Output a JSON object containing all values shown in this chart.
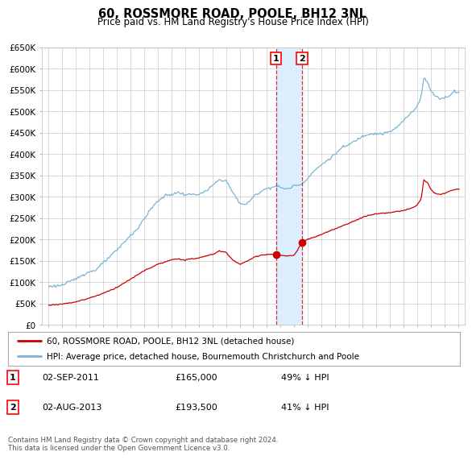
{
  "title": "60, ROSSMORE ROAD, POOLE, BH12 3NL",
  "subtitle": "Price paid vs. HM Land Registry's House Price Index (HPI)",
  "legend_line1": "60, ROSSMORE ROAD, POOLE, BH12 3NL (detached house)",
  "legend_line2": "HPI: Average price, detached house, Bournemouth Christchurch and Poole",
  "footnote": "Contains HM Land Registry data © Crown copyright and database right 2024.\nThis data is licensed under the Open Government Licence v3.0.",
  "transaction1_date": "02-SEP-2011",
  "transaction1_price": 165000,
  "transaction1_pct": "49% ↓ HPI",
  "transaction2_date": "02-AUG-2013",
  "transaction2_price": 193500,
  "transaction2_pct": "41% ↓ HPI",
  "hpi_color": "#7ab3d4",
  "price_color": "#cc0000",
  "highlight_color": "#ddeeff",
  "marker_color": "#cc0000",
  "grid_color": "#cccccc",
  "background_color": "#ffffff",
  "ylim": [
    0,
    650000
  ],
  "ytick_values": [
    0,
    50000,
    100000,
    150000,
    200000,
    250000,
    300000,
    350000,
    400000,
    450000,
    500000,
    550000,
    600000,
    650000
  ],
  "x_start_year": 1995,
  "x_end_year": 2025,
  "transaction1_x": 2011.67,
  "transaction2_x": 2013.58,
  "hpi_anchors_x": [
    1995.0,
    1996.0,
    1997.0,
    1997.5,
    1998.5,
    1999.0,
    2000.0,
    2001.0,
    2001.5,
    2002.5,
    2003.0,
    2003.5,
    2004.5,
    2005.0,
    2006.0,
    2006.5,
    2007.5,
    2008.0,
    2008.5,
    2009.0,
    2009.5,
    2010.0,
    2010.5,
    2011.0,
    2011.67,
    2012.0,
    2012.5,
    2013.0,
    2013.58,
    2014.0,
    2014.5,
    2015.0,
    2016.0,
    2016.5,
    2017.0,
    2017.5,
    2018.0,
    2018.5,
    2019.0,
    2019.5,
    2020.0,
    2020.5,
    2021.0,
    2021.5,
    2022.0,
    2022.3,
    2022.5,
    2022.8,
    2023.0,
    2023.3,
    2023.7,
    2024.0,
    2024.3,
    2024.7,
    2025.0
  ],
  "hpi_anchors_y": [
    90000,
    93000,
    108000,
    118000,
    130000,
    145000,
    175000,
    210000,
    225000,
    272000,
    290000,
    302000,
    310000,
    305000,
    306000,
    312000,
    340000,
    338000,
    310000,
    285000,
    282000,
    300000,
    312000,
    320000,
    325000,
    322000,
    318000,
    326000,
    330000,
    345000,
    362000,
    375000,
    400000,
    415000,
    422000,
    432000,
    442000,
    448000,
    448000,
    448000,
    452000,
    462000,
    478000,
    495000,
    512000,
    535000,
    578000,
    568000,
    548000,
    538000,
    530000,
    532000,
    535000,
    548000,
    545000
  ],
  "price_anchors_x": [
    1995.0,
    1996.0,
    1997.0,
    1998.0,
    1999.0,
    2000.0,
    2001.0,
    2002.0,
    2003.0,
    2004.0,
    2004.5,
    2005.0,
    2006.0,
    2007.0,
    2007.5,
    2008.0,
    2008.5,
    2009.0,
    2009.5,
    2010.0,
    2010.5,
    2011.0,
    2011.67,
    2012.0,
    2012.5,
    2013.0,
    2013.58,
    2014.0,
    2015.0,
    2016.0,
    2017.0,
    2018.0,
    2018.5,
    2019.0,
    2019.5,
    2020.0,
    2020.5,
    2021.0,
    2021.5,
    2022.0,
    2022.3,
    2022.5,
    2022.8,
    2023.0,
    2023.3,
    2023.7,
    2024.0,
    2024.5,
    2025.0
  ],
  "price_anchors_y": [
    46000,
    49000,
    54000,
    63000,
    74000,
    88000,
    107000,
    127000,
    142000,
    152000,
    155000,
    152000,
    157000,
    165000,
    173000,
    170000,
    152000,
    142000,
    148000,
    158000,
    163000,
    165000,
    165000,
    163000,
    161000,
    163000,
    193500,
    200000,
    212000,
    225000,
    238000,
    252000,
    257000,
    260000,
    262000,
    263000,
    265000,
    268000,
    272000,
    280000,
    295000,
    340000,
    332000,
    318000,
    308000,
    305000,
    308000,
    315000,
    318000
  ]
}
